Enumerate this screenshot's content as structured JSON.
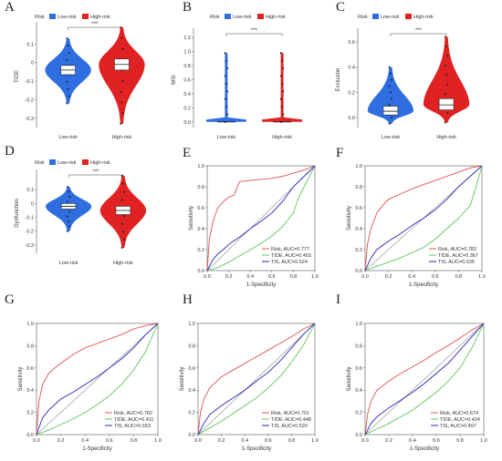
{
  "colors": {
    "low_risk": "#2f6ee0",
    "high_risk": "#e02222",
    "risk_curve": "#e05050",
    "tide_curve": "#5cc65c",
    "tis_curve": "#2626b8",
    "diagonal": "#9a9a9a"
  },
  "chart_data": [
    {
      "panel": "A",
      "type": "violin",
      "legend": {
        "title": "Risk",
        "entries": [
          "Low-risk",
          "High-risk"
        ],
        "placement": "top"
      },
      "ylabel": "TIDE",
      "xlabel": "",
      "categories": [
        "Low-risk",
        "High-risk"
      ],
      "yticks": [
        "0.1",
        "0",
        "-0.1",
        "-0.2",
        "-0.3"
      ],
      "ylim": [
        -0.35,
        0.2
      ],
      "significance": "***",
      "series": [
        {
          "name": "Low-risk",
          "median": -0.04,
          "q1": -0.065,
          "q3": -0.015,
          "min": -0.22,
          "max": 0.13
        },
        {
          "name": "High-risk",
          "median": -0.01,
          "q1": -0.04,
          "q3": 0.02,
          "min": -0.33,
          "max": 0.19
        }
      ]
    },
    {
      "panel": "B",
      "type": "violin",
      "legend": {
        "title": "Risk",
        "entries": [
          "Low-risk",
          "High-risk"
        ],
        "placement": "top"
      },
      "ylabel": "MSI",
      "xlabel": "",
      "categories": [
        "Low-risk",
        "High-risk"
      ],
      "yticks": [
        "1.2",
        "1.0",
        "0.8",
        "0.6",
        "0.4",
        "0.2",
        "0.0"
      ],
      "ylim": [
        -0.08,
        1.28
      ],
      "significance": "***",
      "series": [
        {
          "name": "Low-risk",
          "median": 0.0,
          "q1": 0.0,
          "q3": 0.0,
          "min": 0.0,
          "max": 0.98
        },
        {
          "name": "High-risk",
          "median": 0.0,
          "q1": 0.0,
          "q3": 0.0,
          "min": 0.0,
          "max": 0.98
        }
      ]
    },
    {
      "panel": "C",
      "type": "violin",
      "legend": {
        "title": "Risk",
        "entries": [
          "Low-risk",
          "High-risk"
        ],
        "placement": "top"
      },
      "ylabel": "Exclusion",
      "xlabel": "",
      "categories": [
        "Low-risk",
        "High-risk"
      ],
      "yticks": [
        "0.6",
        "0.4",
        "0.2",
        "0.0"
      ],
      "ylim": [
        -0.08,
        0.68
      ],
      "significance": "***",
      "series": [
        {
          "name": "Low-risk",
          "median": 0.05,
          "q1": 0.02,
          "q3": 0.09,
          "min": -0.05,
          "max": 0.4
        },
        {
          "name": "High-risk",
          "median": 0.1,
          "q1": 0.06,
          "q3": 0.15,
          "min": -0.04,
          "max": 0.64
        }
      ]
    },
    {
      "panel": "D",
      "type": "violin",
      "legend": {
        "title": "Risk",
        "entries": [
          "Low-risk",
          "High-risk"
        ],
        "placement": "top"
      },
      "ylabel": "Dysfunction",
      "xlabel": "",
      "categories": [
        "Low-risk",
        "High-risk"
      ],
      "yticks": [
        "0.1",
        "0",
        "-0.1",
        "-0.2",
        "-0.3"
      ],
      "ylim": [
        -0.36,
        0.22
      ],
      "significance": "***",
      "series": [
        {
          "name": "Low-risk",
          "median": -0.02,
          "q1": -0.04,
          "q3": 0.0,
          "min": -0.2,
          "max": 0.12
        },
        {
          "name": "High-risk",
          "median": -0.05,
          "q1": -0.08,
          "q3": -0.02,
          "min": -0.32,
          "max": 0.2
        }
      ]
    },
    {
      "panel": "E",
      "type": "line",
      "xlabel": "1-Specificity",
      "ylabel": "Sensitivity",
      "xlim": [
        0,
        1
      ],
      "ylim": [
        0,
        1
      ],
      "ticks": [
        "0.0",
        "0.2",
        "0.4",
        "0.6",
        "0.8",
        "1.0"
      ],
      "legend": {
        "placement": "bottom-right"
      },
      "series": [
        {
          "name": "Risk, AUC=0.777",
          "x": [
            0,
            0.02,
            0.05,
            0.08,
            0.1,
            0.15,
            0.2,
            0.25,
            0.3,
            0.4,
            0.5,
            0.6,
            0.7,
            0.8,
            0.9,
            1.0
          ],
          "y": [
            0,
            0.3,
            0.45,
            0.55,
            0.6,
            0.66,
            0.7,
            0.72,
            0.85,
            0.86,
            0.87,
            0.88,
            0.9,
            0.93,
            0.96,
            1.0
          ]
        },
        {
          "name": "TIDE, AUC=0.403",
          "x": [
            0,
            0.1,
            0.2,
            0.3,
            0.4,
            0.5,
            0.6,
            0.7,
            0.8,
            0.85,
            0.9,
            1.0
          ],
          "y": [
            0,
            0.03,
            0.08,
            0.14,
            0.2,
            0.26,
            0.33,
            0.42,
            0.55,
            0.7,
            0.8,
            1.0
          ]
        },
        {
          "name": "TIS, AUC=0.524",
          "x": [
            0,
            0.05,
            0.1,
            0.15,
            0.2,
            0.3,
            0.4,
            0.5,
            0.6,
            0.7,
            0.8,
            0.9,
            1.0
          ],
          "y": [
            0,
            0.1,
            0.16,
            0.2,
            0.25,
            0.32,
            0.4,
            0.47,
            0.55,
            0.66,
            0.8,
            0.9,
            1.0
          ]
        }
      ]
    },
    {
      "panel": "F",
      "type": "line",
      "xlabel": "1-Specificity",
      "ylabel": "Sensitivity",
      "xlim": [
        0,
        1
      ],
      "ylim": [
        0,
        1
      ],
      "ticks": [
        "0.0",
        "0.2",
        "0.4",
        "0.6",
        "0.8",
        "1.0"
      ],
      "legend": {
        "placement": "bottom-right"
      },
      "series": [
        {
          "name": "Risk, AUC=0.782",
          "x": [
            0,
            0.02,
            0.05,
            0.1,
            0.15,
            0.2,
            0.3,
            0.4,
            0.5,
            0.6,
            0.7,
            0.8,
            0.9,
            1.0
          ],
          "y": [
            0,
            0.25,
            0.4,
            0.55,
            0.62,
            0.68,
            0.73,
            0.78,
            0.82,
            0.86,
            0.9,
            0.94,
            0.98,
            1.0
          ]
        },
        {
          "name": "TIDE, AUC=0.367",
          "x": [
            0,
            0.1,
            0.2,
            0.3,
            0.4,
            0.5,
            0.6,
            0.7,
            0.8,
            0.9,
            0.95,
            1.0
          ],
          "y": [
            0,
            0.04,
            0.08,
            0.12,
            0.17,
            0.22,
            0.3,
            0.4,
            0.5,
            0.62,
            0.8,
            1.0
          ]
        },
        {
          "name": "TIS, AUC=0.535",
          "x": [
            0,
            0.05,
            0.1,
            0.2,
            0.3,
            0.4,
            0.5,
            0.6,
            0.7,
            0.8,
            0.9,
            1.0
          ],
          "y": [
            0,
            0.12,
            0.2,
            0.28,
            0.35,
            0.43,
            0.5,
            0.58,
            0.68,
            0.8,
            0.9,
            1.0
          ]
        }
      ]
    },
    {
      "panel": "G",
      "type": "line",
      "xlabel": "1-Specificity",
      "ylabel": "Sensitivity",
      "xlim": [
        0,
        1
      ],
      "ylim": [
        0,
        1
      ],
      "ticks": [
        "0.0",
        "0.2",
        "0.4",
        "0.6",
        "0.8",
        "1.0"
      ],
      "legend": {
        "placement": "bottom-right"
      },
      "series": [
        {
          "name": "Risk, AUC=0.782",
          "x": [
            0,
            0.02,
            0.05,
            0.1,
            0.15,
            0.2,
            0.3,
            0.4,
            0.5,
            0.6,
            0.7,
            0.8,
            0.9,
            1.0
          ],
          "y": [
            0,
            0.3,
            0.45,
            0.55,
            0.6,
            0.64,
            0.72,
            0.78,
            0.82,
            0.86,
            0.9,
            0.95,
            0.98,
            1.0
          ]
        },
        {
          "name": "TIDE, AUC=0.411",
          "x": [
            0,
            0.1,
            0.2,
            0.3,
            0.4,
            0.5,
            0.6,
            0.7,
            0.8,
            0.9,
            1.0
          ],
          "y": [
            0,
            0.04,
            0.09,
            0.14,
            0.2,
            0.27,
            0.35,
            0.45,
            0.58,
            0.75,
            1.0
          ]
        },
        {
          "name": "TIS, AUC=0.553",
          "x": [
            0,
            0.05,
            0.1,
            0.2,
            0.3,
            0.4,
            0.5,
            0.6,
            0.7,
            0.8,
            0.9,
            1.0
          ],
          "y": [
            0,
            0.15,
            0.22,
            0.32,
            0.38,
            0.45,
            0.52,
            0.6,
            0.68,
            0.78,
            0.9,
            1.0
          ]
        }
      ]
    },
    {
      "panel": "H",
      "type": "line",
      "xlabel": "1-Specificity",
      "ylabel": "Sensitivity",
      "xlim": [
        0,
        1
      ],
      "ylim": [
        0,
        1
      ],
      "ticks": [
        "0.0",
        "0.2",
        "0.4",
        "0.6",
        "0.8",
        "1.0"
      ],
      "legend": {
        "placement": "bottom-right"
      },
      "series": [
        {
          "name": "Risk, AUC=0.701",
          "x": [
            0,
            0.02,
            0.05,
            0.1,
            0.2,
            0.3,
            0.4,
            0.5,
            0.6,
            0.7,
            0.8,
            0.9,
            1.0
          ],
          "y": [
            0,
            0.2,
            0.32,
            0.42,
            0.52,
            0.58,
            0.64,
            0.7,
            0.76,
            0.82,
            0.88,
            0.95,
            1.0
          ]
        },
        {
          "name": "TIDE, AUC=0.448",
          "x": [
            0,
            0.1,
            0.2,
            0.3,
            0.4,
            0.5,
            0.6,
            0.7,
            0.8,
            0.9,
            1.0
          ],
          "y": [
            0,
            0.06,
            0.12,
            0.19,
            0.26,
            0.33,
            0.42,
            0.52,
            0.65,
            0.8,
            1.0
          ]
        },
        {
          "name": "TIS, AUC=0.520",
          "x": [
            0,
            0.05,
            0.1,
            0.2,
            0.3,
            0.4,
            0.5,
            0.6,
            0.7,
            0.8,
            0.9,
            1.0
          ],
          "y": [
            0,
            0.1,
            0.18,
            0.26,
            0.33,
            0.4,
            0.48,
            0.56,
            0.66,
            0.78,
            0.9,
            1.0
          ]
        }
      ]
    },
    {
      "panel": "I",
      "type": "line",
      "xlabel": "1-Specificity",
      "ylabel": "Sensitivity",
      "xlim": [
        0,
        1
      ],
      "ylim": [
        0,
        1
      ],
      "ticks": [
        "0.0",
        "0.2",
        "0.4",
        "0.6",
        "0.8",
        "1.0"
      ],
      "legend": {
        "placement": "bottom-right"
      },
      "series": [
        {
          "name": "Risk, AUC=0.674",
          "x": [
            0,
            0.02,
            0.05,
            0.1,
            0.2,
            0.3,
            0.4,
            0.5,
            0.6,
            0.7,
            0.8,
            0.9,
            1.0
          ],
          "y": [
            0,
            0.18,
            0.3,
            0.4,
            0.48,
            0.55,
            0.61,
            0.67,
            0.74,
            0.8,
            0.87,
            0.94,
            1.0
          ]
        },
        {
          "name": "TIDE, AUC=0.424",
          "x": [
            0,
            0.1,
            0.2,
            0.3,
            0.4,
            0.5,
            0.6,
            0.7,
            0.8,
            0.9,
            1.0
          ],
          "y": [
            0,
            0.05,
            0.1,
            0.16,
            0.22,
            0.3,
            0.38,
            0.48,
            0.6,
            0.78,
            1.0
          ]
        },
        {
          "name": "TIS, AUC=0.497",
          "x": [
            0,
            0.05,
            0.1,
            0.2,
            0.3,
            0.4,
            0.5,
            0.6,
            0.7,
            0.8,
            0.9,
            1.0
          ],
          "y": [
            0,
            0.1,
            0.16,
            0.24,
            0.31,
            0.38,
            0.46,
            0.55,
            0.64,
            0.76,
            0.88,
            1.0
          ]
        }
      ]
    }
  ]
}
